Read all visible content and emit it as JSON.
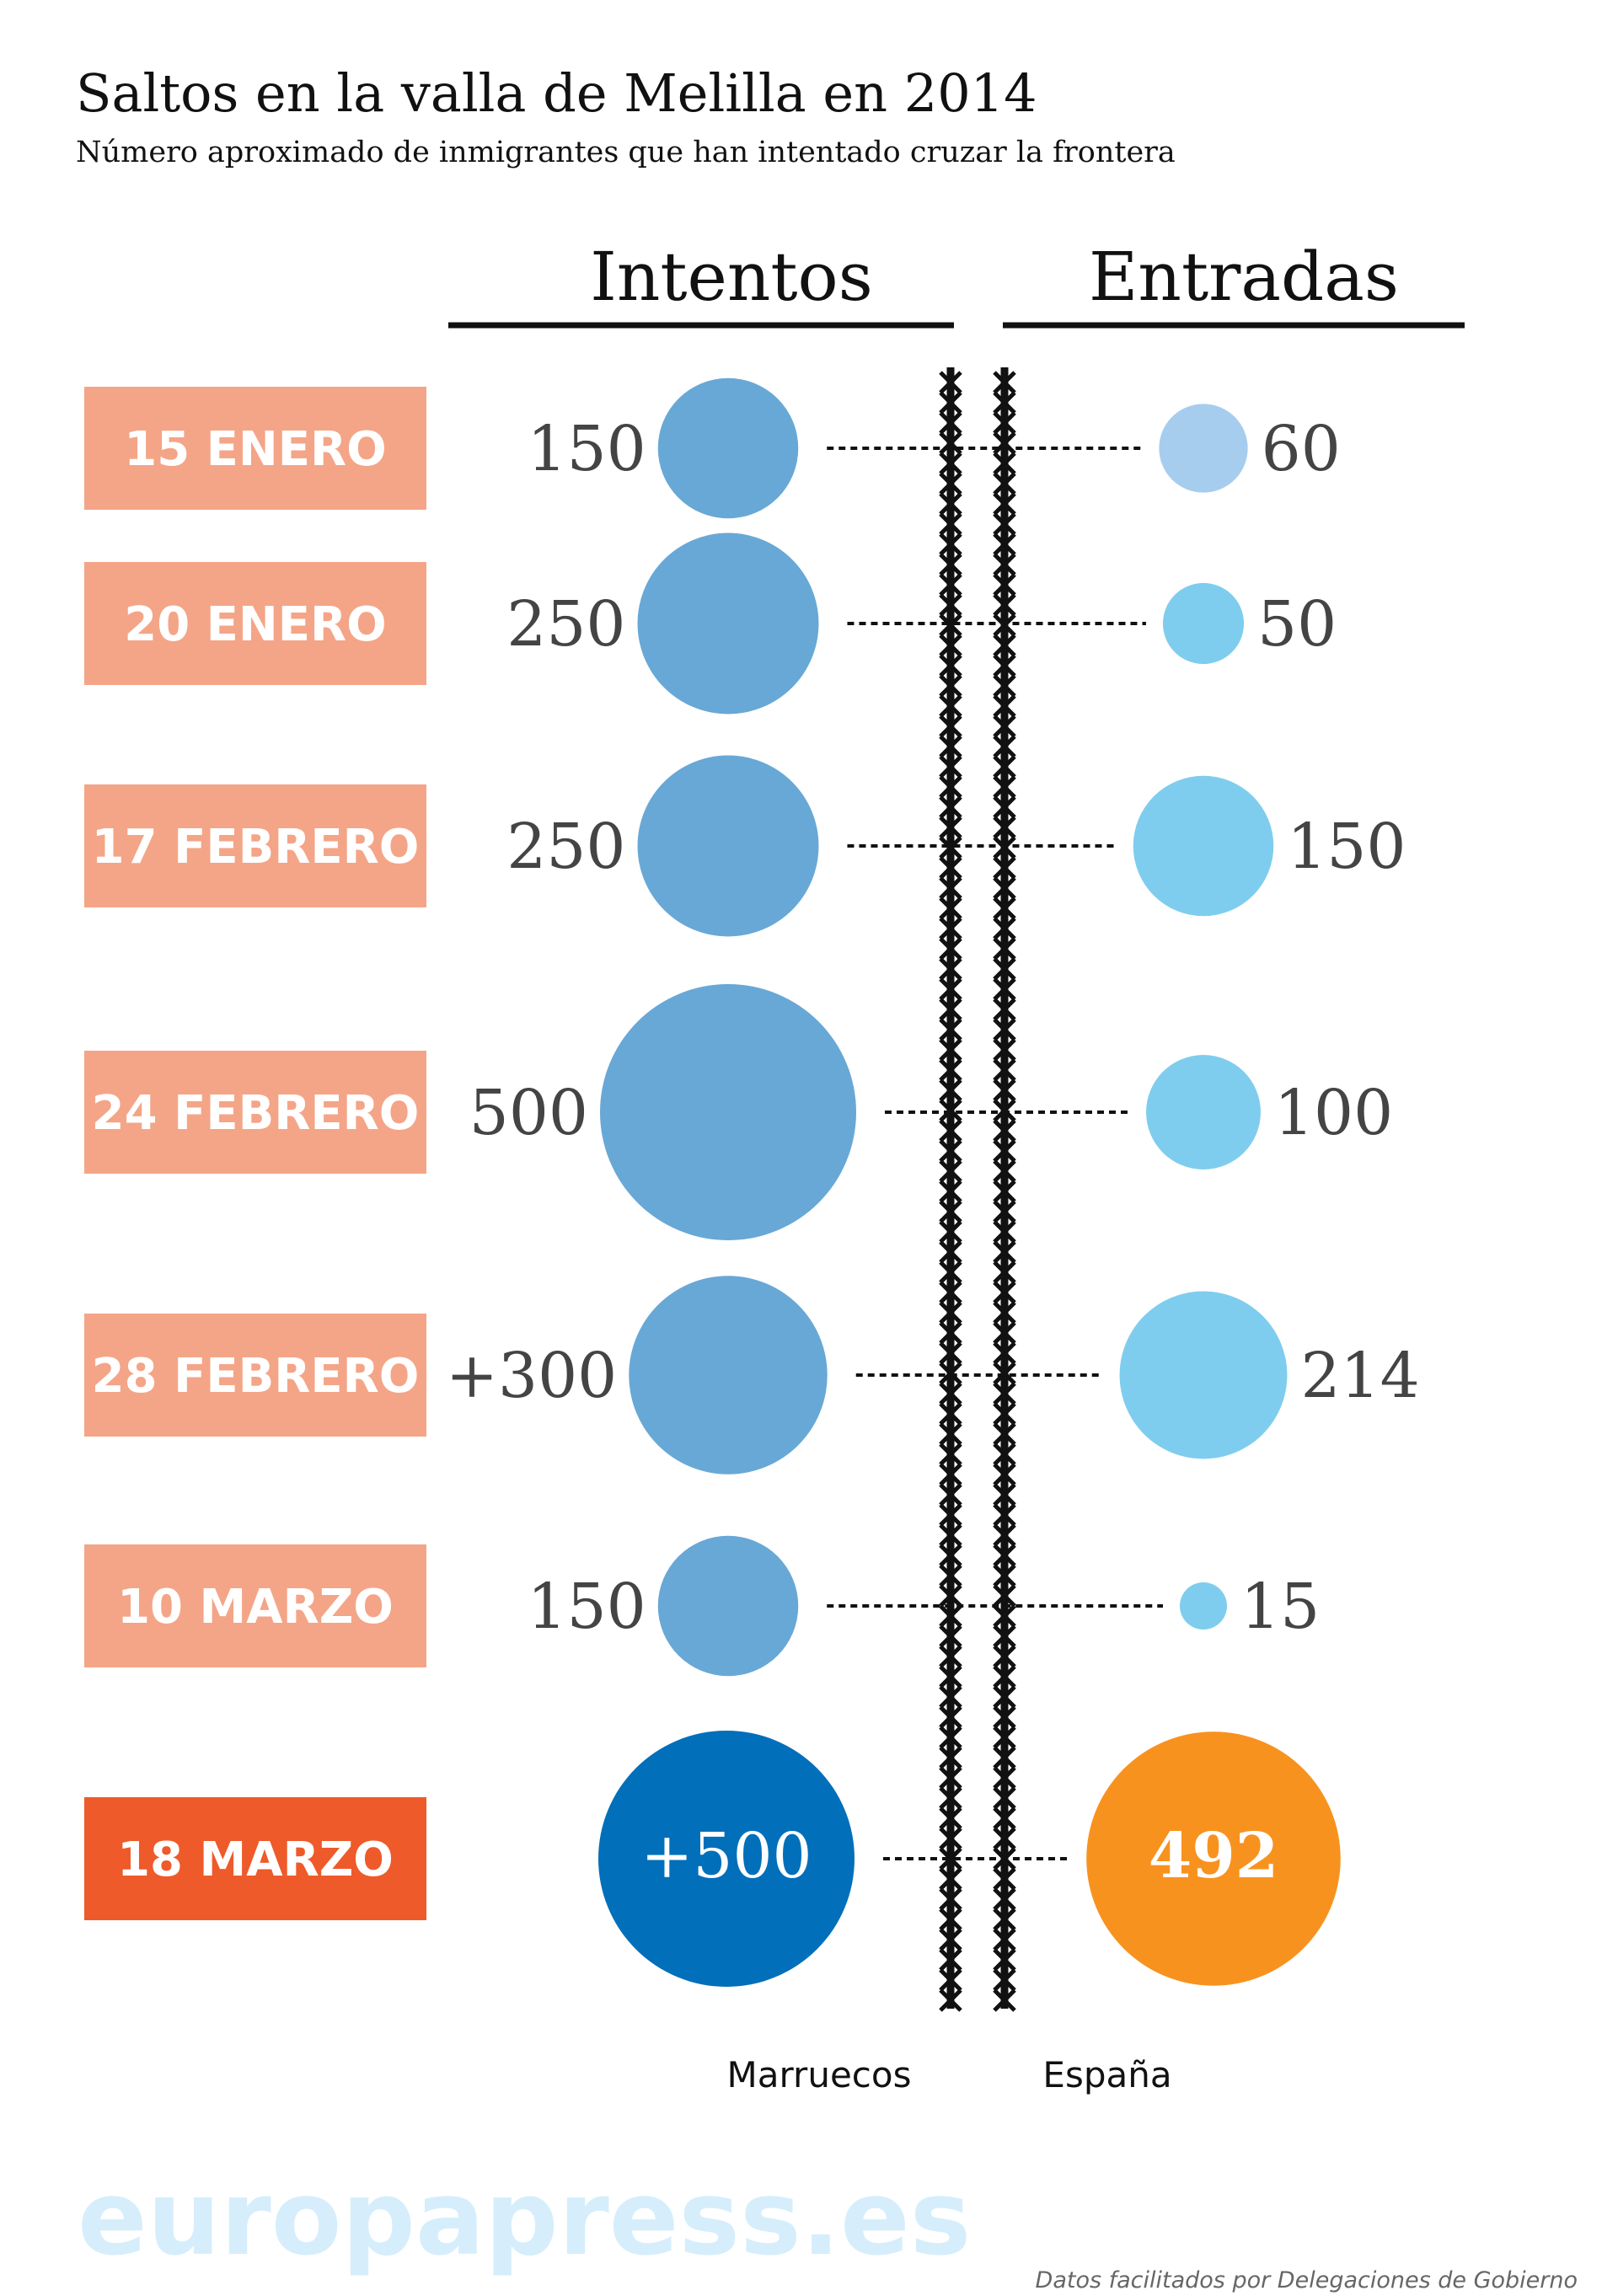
{
  "colors": {
    "date_bg": "#f4a587",
    "date_bg_highlight": "#ee5a2a",
    "intentos_bubble": "#68a8d6",
    "entradas_bubble": "#7fcdee",
    "entradas_bubble_light": "#a6cdee",
    "highlight_intentos": "#016fba",
    "highlight_entradas": "#f8921f",
    "brand": "#d6eefb"
  },
  "chart_data": {
    "type": "bubble",
    "title": "Saltos en la valla de Melilla en 2014",
    "subtitle": "Número aproximado de inmigrantes que han intentado cruzar la frontera",
    "columns": {
      "intentos": "Intentos",
      "entradas": "Entradas"
    },
    "rows": [
      {
        "date": "15 ENERO",
        "intentos": 150,
        "intentos_label": "150",
        "entradas": 60,
        "entradas_label": "60",
        "highlight": false
      },
      {
        "date": "20 ENERO",
        "intentos": 250,
        "intentos_label": "250",
        "entradas": 50,
        "entradas_label": "50",
        "highlight": false
      },
      {
        "date": "17 FEBRERO",
        "intentos": 250,
        "intentos_label": "250",
        "entradas": 150,
        "entradas_label": "150",
        "highlight": false
      },
      {
        "date": "24 FEBRERO",
        "intentos": 500,
        "intentos_label": "500",
        "entradas": 100,
        "entradas_label": "100",
        "highlight": false
      },
      {
        "date": "28 FEBRERO",
        "intentos": 300,
        "intentos_label": "+300",
        "entradas": 214,
        "entradas_label": "214",
        "highlight": false
      },
      {
        "date": "10 MARZO",
        "intentos": 150,
        "intentos_label": "150",
        "entradas": 15,
        "entradas_label": "15",
        "highlight": false
      },
      {
        "date": "18 MARZO",
        "intentos": 500,
        "intentos_label": "+500",
        "entradas": 492,
        "entradas_label": "492",
        "highlight": true
      }
    ],
    "countries": {
      "left": "Marruecos",
      "right": "España"
    }
  },
  "footer": {
    "brand": "europapress.es",
    "source": "Datos facilitados por Delegaciones de Gobierno"
  }
}
